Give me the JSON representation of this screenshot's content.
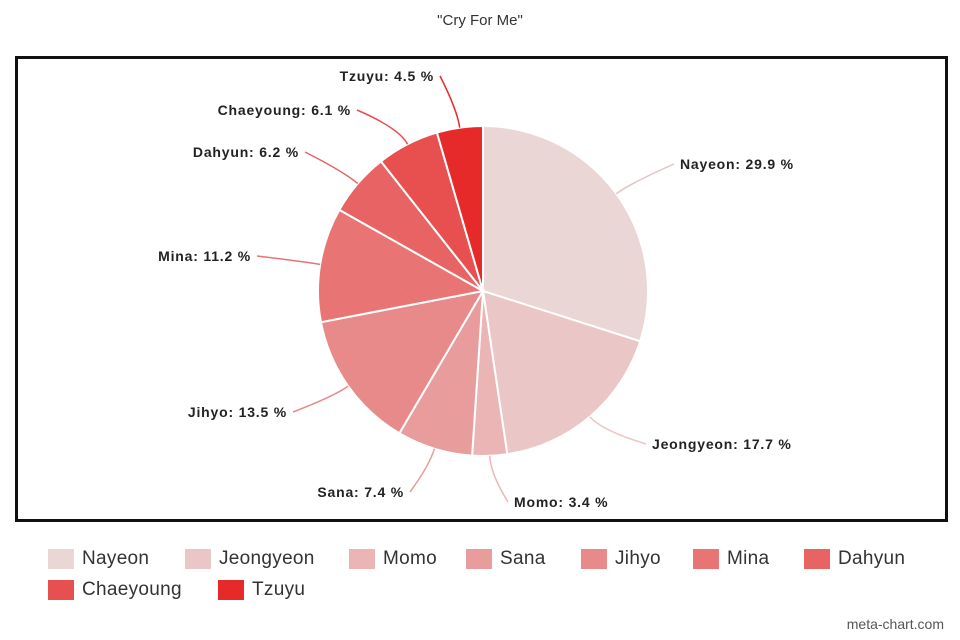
{
  "title": "\"Cry For Me\"",
  "watermark": "meta-chart.com",
  "chart_data": {
    "type": "pie",
    "title": "\"Cry For Me\"",
    "legend_position": "bottom",
    "slices": [
      {
        "name": "Nayeon",
        "value": 29.9,
        "label": "Nayeon: 29.9 %",
        "color": "#ebd6d6"
      },
      {
        "name": "Jeongyeon",
        "value": 17.7,
        "label": "Jeongyeon: 17.7 %",
        "color": "#ebc6c6"
      },
      {
        "name": "Momo",
        "value": 3.4,
        "label": "Momo: 3.4 %",
        "color": "#ebb5b5"
      },
      {
        "name": "Sana",
        "value": 7.4,
        "label": "Sana: 7.4 %",
        "color": "#e89c9c"
      },
      {
        "name": "Jihyo",
        "value": 13.5,
        "label": "Jihyo: 13.5 %",
        "color": "#e98a8a"
      },
      {
        "name": "Mina",
        "value": 11.2,
        "label": "Mina: 11.2 %",
        "color": "#e87474"
      },
      {
        "name": "Dahyun",
        "value": 6.2,
        "label": "Dahyun: 6.2 %",
        "color": "#e86464"
      },
      {
        "name": "Chaeyoung",
        "value": 6.1,
        "label": "Chaeyoung: 6.1 %",
        "color": "#e84f4f"
      },
      {
        "name": "Tzuyu",
        "value": 4.5,
        "label": "Tzuyu: 4.5 %",
        "color": "#e62a2a"
      }
    ]
  }
}
